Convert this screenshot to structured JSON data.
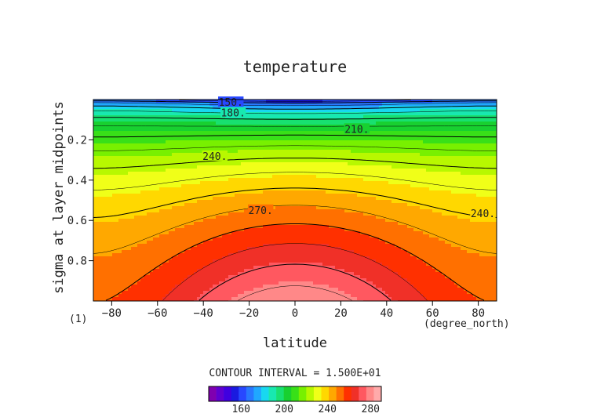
{
  "chart_data": {
    "type": "heatmap",
    "title": "temperature",
    "xlabel": "latitude",
    "ylabel": "sigma at layer midpoints",
    "x_unit_label": "(degree_north)",
    "panel_label": "(1)",
    "xlim": [
      -88,
      88
    ],
    "ylim": [
      0.0,
      1.0
    ],
    "y_reversed": true,
    "x_ticks": [
      -80,
      -60,
      -40,
      -20,
      0,
      20,
      40,
      60,
      80
    ],
    "y_ticks": [
      0.2,
      0.4,
      0.6,
      0.8
    ],
    "contour_interval_text": "CONTOUR INTERVAL = 1.500E+01",
    "contour_labels": [
      {
        "text": "150.",
        "x": -28,
        "y": 0.012
      },
      {
        "text": "180.",
        "x": -27,
        "y": 0.065
      },
      {
        "text": "210.",
        "x": 27,
        "y": 0.145
      },
      {
        "text": "240.",
        "x": -35,
        "y": 0.28
      },
      {
        "text": "270.",
        "x": -15,
        "y": 0.548
      },
      {
        "text": "240.",
        "x": 82,
        "y": 0.565
      }
    ],
    "colorbar": {
      "min": 130,
      "max": 290,
      "tick_labels": [
        "160",
        "200",
        "240",
        "280"
      ],
      "tick_values": [
        160,
        200,
        240,
        280
      ],
      "colors": [
        "#8000b0",
        "#6000d0",
        "#4000e0",
        "#1a1ae0",
        "#2848ff",
        "#2878ff",
        "#20a8ff",
        "#18d8f0",
        "#18e8b0",
        "#18e070",
        "#18d030",
        "#38e018",
        "#78f000",
        "#b8f800",
        "#f0ff18",
        "#ffd800",
        "#ffa800",
        "#ff7000",
        "#ff3000",
        "#f03028",
        "#ff5860",
        "#ff8888",
        "#ffaaaa"
      ]
    },
    "grid": false
  }
}
